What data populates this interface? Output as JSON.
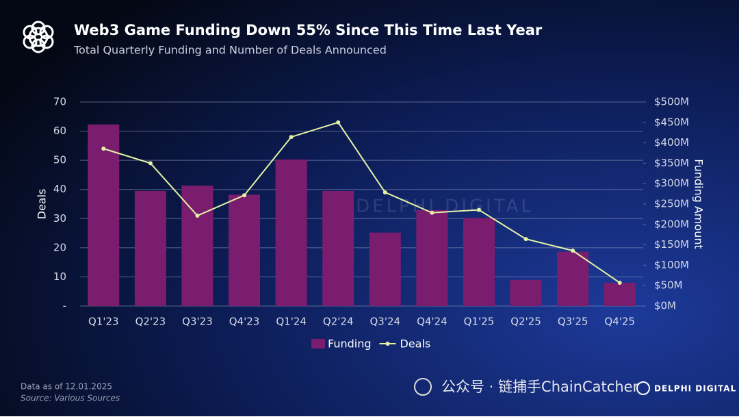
{
  "chart_data": {
    "type": "bar",
    "title": "Web3 Game Funding Down 55% Since This Time Last Year",
    "subtitle": "Total Quarterly Funding and Number of Deals Announced",
    "y_label": "Deals",
    "y2_label": "Funding Amount",
    "categories": [
      "Q1'23",
      "Q2'23",
      "Q3'23",
      "Q4'23",
      "Q1'24",
      "Q2'24",
      "Q3'24",
      "Q4'24",
      "Q1'25",
      "Q2'25",
      "Q3'25",
      "Q4'25"
    ],
    "series": [
      {
        "name": "Funding",
        "type": "bar",
        "axis": "y2",
        "color": "#7b1d6f",
        "values": [
          445,
          282,
          295,
          273,
          359,
          282,
          180,
          235,
          216,
          64,
          133,
          57
        ]
      },
      {
        "name": "Deals",
        "type": "line",
        "axis": "y",
        "color": "#e4f3a6",
        "values": [
          54,
          49,
          31,
          38,
          58,
          63,
          39,
          32,
          33,
          23,
          19,
          8
        ]
      }
    ],
    "ylim": [
      0,
      70
    ],
    "yticks": [
      {
        "value": 0,
        "label": "-"
      },
      10,
      20,
      30,
      40,
      50,
      60,
      70
    ],
    "y2lim": [
      0,
      500
    ],
    "y2ticks": [
      {
        "value": 0,
        "label": "$0M"
      },
      {
        "value": 50,
        "label": "$50M"
      },
      {
        "value": 100,
        "label": "$100M"
      },
      {
        "value": 150,
        "label": "$150M"
      },
      {
        "value": 200,
        "label": "$200M"
      },
      {
        "value": 250,
        "label": "$250M"
      },
      {
        "value": 300,
        "label": "$300M"
      },
      {
        "value": 350,
        "label": "$350M"
      },
      {
        "value": 400,
        "label": "$400M"
      },
      {
        "value": 450,
        "label": "$450M"
      },
      {
        "value": 500,
        "label": "$500M"
      }
    ],
    "grid": true,
    "legend": "bottom"
  },
  "footer": {
    "data_as_of": "Data as of 12.01.2025",
    "source": "Source: Various Sources",
    "brand": "DELPHI DIGITAL",
    "watermark": "公众号 · 链捕手ChainCatcher"
  }
}
